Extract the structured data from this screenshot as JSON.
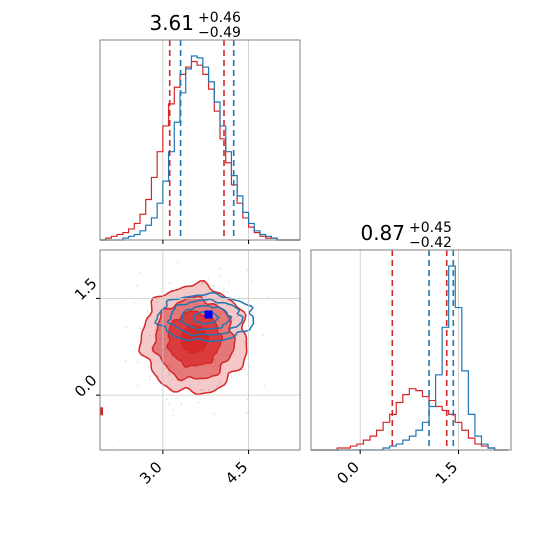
{
  "chart_data": [
    {
      "type": "histogram",
      "panel": "marginal-param-1",
      "title": {
        "value": "3.61",
        "upper": "+0.46",
        "lower": "−0.49"
      },
      "xlim": [
        1.9,
        5.4
      ],
      "bin_edges": [
        1.9,
        2.0,
        2.1,
        2.2,
        2.3,
        2.4,
        2.5,
        2.6,
        2.7,
        2.8,
        2.9,
        3.0,
        3.1,
        3.2,
        3.3,
        3.4,
        3.5,
        3.6,
        3.7,
        3.8,
        3.9,
        4.0,
        4.1,
        4.2,
        4.3,
        4.4,
        4.5,
        4.6,
        4.7,
        4.8,
        4.9,
        5.0,
        5.1,
        5.2,
        5.3,
        5.4
      ],
      "series": [
        {
          "color": "#d62728",
          "values": [
            0,
            1,
            2,
            3,
            4,
            6,
            9,
            14,
            22,
            34,
            48,
            62,
            74,
            83,
            90,
            94,
            97,
            95,
            90,
            82,
            70,
            55,
            42,
            30,
            20,
            12,
            7,
            4,
            2,
            1,
            1,
            0,
            0,
            0,
            0
          ]
        },
        {
          "color": "#1f77b4",
          "values": [
            0,
            0,
            0,
            0,
            1,
            2,
            3,
            5,
            8,
            12,
            20,
            32,
            48,
            64,
            80,
            93,
            100,
            99,
            94,
            86,
            75,
            62,
            48,
            35,
            24,
            15,
            9,
            5,
            3,
            2,
            1,
            0,
            0,
            0,
            0
          ]
        }
      ],
      "quantile_lines": [
        {
          "color": "#d62728",
          "x": [
            3.12,
            4.07
          ]
        },
        {
          "color": "#1f77b4",
          "x": [
            3.31,
            4.24
          ]
        }
      ],
      "grid": true
    },
    {
      "type": "histogram",
      "panel": "marginal-param-2",
      "title": {
        "value": "0.87",
        "upper": "+0.45",
        "lower": "−0.42"
      },
      "xlim": [
        -0.75,
        2.3
      ],
      "bin_edges": [
        -0.75,
        -0.65,
        -0.55,
        -0.45,
        -0.35,
        -0.25,
        -0.15,
        -0.05,
        0.05,
        0.15,
        0.25,
        0.35,
        0.45,
        0.55,
        0.65,
        0.75,
        0.85,
        0.95,
        1.05,
        1.15,
        1.25,
        1.35,
        1.45,
        1.55,
        1.65,
        1.75,
        1.85,
        1.95,
        2.05,
        2.15,
        2.25
      ],
      "series": [
        {
          "color": "#d62728",
          "values": [
            0,
            0,
            0,
            0,
            1,
            1,
            2,
            3,
            5,
            7,
            10,
            14,
            18,
            24,
            28,
            31,
            30,
            27,
            25,
            22,
            20,
            18,
            14,
            10,
            6,
            3,
            2,
            1,
            0,
            0
          ]
        },
        {
          "color": "#1f77b4",
          "values": [
            0,
            0,
            0,
            0,
            0,
            0,
            0,
            0,
            0,
            0,
            0,
            1,
            2,
            3,
            5,
            7,
            10,
            14,
            22,
            38,
            62,
            93,
            72,
            40,
            18,
            7,
            3,
            1,
            0,
            0
          ]
        }
      ],
      "quantile_lines": [
        {
          "color": "#d62728",
          "x": [
            0.49,
            1.32
          ]
        },
        {
          "color": "#1f77b4",
          "x": [
            1.05,
            1.42
          ]
        }
      ],
      "xticks": [
        0.0,
        1.5
      ],
      "xtick_labels": [
        "0.0",
        "1.5"
      ],
      "grid": true
    },
    {
      "type": "contour",
      "panel": "joint-param-1-vs-param-2",
      "xlim": [
        1.9,
        5.4
      ],
      "ylim": [
        -0.85,
        2.25
      ],
      "xticks": [
        3.0,
        4.5
      ],
      "xtick_labels": [
        "3.0",
        "4.5"
      ],
      "yticks": [
        0.0,
        1.5
      ],
      "ytick_labels": [
        "0.0",
        "1.5"
      ],
      "grid": true,
      "series": [
        {
          "color": "#d62728",
          "filled": true,
          "center": [
            3.55,
            0.87
          ],
          "sigma": [
            0.46,
            0.42
          ],
          "levels": [
            0.5,
            1.0,
            1.5,
            2.0
          ],
          "marker": [
            3.5,
            0.85
          ]
        },
        {
          "color": "#1f77b4",
          "filled": false,
          "center": [
            3.75,
            1.2
          ],
          "sigma": [
            0.42,
            0.18
          ],
          "levels": [
            0.5,
            1.0,
            1.5,
            2.0
          ],
          "marker": [
            3.8,
            1.25
          ]
        }
      ]
    }
  ]
}
